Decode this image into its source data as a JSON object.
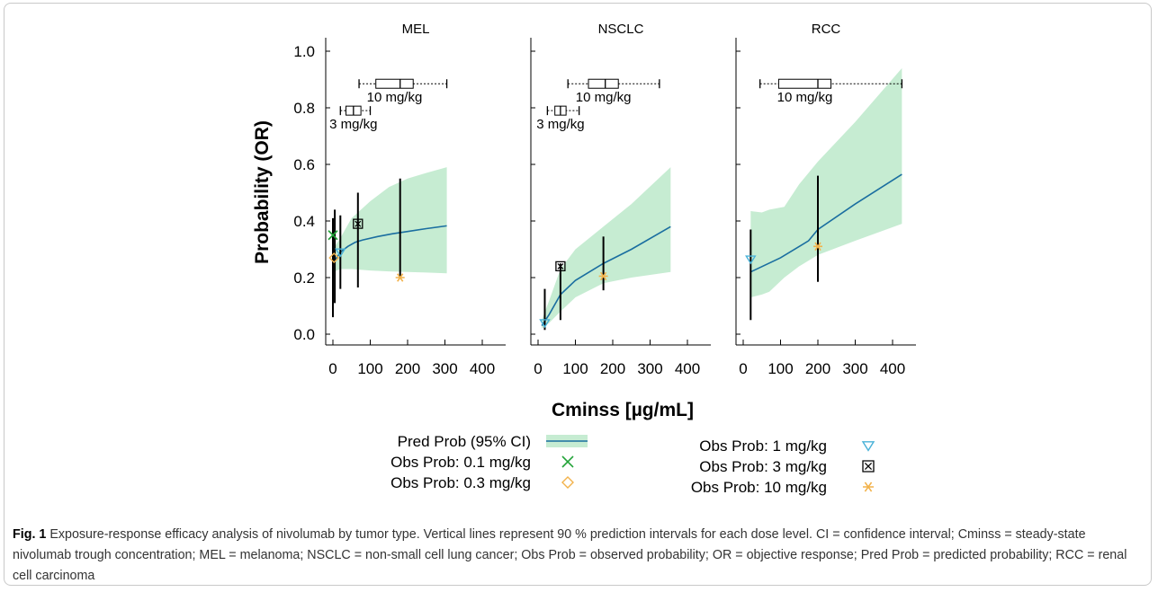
{
  "chart_data": {
    "type": "line",
    "ylabel": "Probability (OR)",
    "xlabel": "Cminss [µg/mL]",
    "ylim": [
      0,
      1.0
    ],
    "xlim": [
      0,
      450
    ],
    "y_ticks": [
      "0.0",
      "0.2",
      "0.4",
      "0.6",
      "0.8",
      "1.0"
    ],
    "x_ticks": [
      "0",
      "100",
      "200",
      "300",
      "400"
    ],
    "panels": [
      {
        "title": "MEL",
        "pred": {
          "x": [
            0,
            10,
            20,
            40,
            60,
            80,
            120,
            160,
            200,
            250,
            305
          ],
          "y": [
            0.25,
            0.27,
            0.29,
            0.31,
            0.325,
            0.333,
            0.345,
            0.355,
            0.363,
            0.373,
            0.383
          ]
        },
        "ci": {
          "x": [
            0,
            20,
            50,
            100,
            150,
            200,
            250,
            305
          ],
          "lower": [
            0.22,
            0.23,
            0.23,
            0.225,
            0.222,
            0.22,
            0.218,
            0.215
          ],
          "upper": [
            0.3,
            0.34,
            0.41,
            0.47,
            0.52,
            0.55,
            0.57,
            0.59
          ]
        },
        "intervals": [
          {
            "x": 0,
            "lower": 0.06,
            "upper": 0.41
          },
          {
            "x": 5,
            "lower": 0.11,
            "upper": 0.44
          },
          {
            "x": 20,
            "lower": 0.16,
            "upper": 0.42
          },
          {
            "x": 67,
            "lower": 0.165,
            "upper": 0.5
          },
          {
            "x": 180,
            "lower": 0.2,
            "upper": 0.55
          }
        ],
        "observed": [
          {
            "dose": "0.1 mg/kg",
            "x": 0,
            "y": 0.35
          },
          {
            "dose": "0.3 mg/kg",
            "x": 3,
            "y": 0.27
          },
          {
            "dose": "1 mg/kg",
            "x": 20,
            "y": 0.29
          },
          {
            "dose": "3 mg/kg",
            "x": 67,
            "y": 0.39
          },
          {
            "dose": "10 mg/kg",
            "x": 180,
            "y": 0.2
          }
        ],
        "boxplots": [
          {
            "label": "10 mg/kg",
            "y": 0.885,
            "min": 70,
            "q1": 115,
            "median": 180,
            "q3": 215,
            "max": 305
          },
          {
            "label": "3 mg/kg",
            "y": 0.79,
            "min": 20,
            "q1": 35,
            "median": 55,
            "q3": 75,
            "max": 100
          }
        ]
      },
      {
        "title": "NSCLC",
        "pred": {
          "x": [
            10,
            30,
            60,
            100,
            175,
            250,
            355
          ],
          "y": [
            0.03,
            0.07,
            0.14,
            0.19,
            0.25,
            0.3,
            0.38
          ]
        },
        "ci": {
          "x": [
            10,
            30,
            60,
            100,
            175,
            250,
            355
          ],
          "lower": [
            0.02,
            0.04,
            0.08,
            0.13,
            0.18,
            0.2,
            0.22
          ],
          "upper": [
            0.05,
            0.12,
            0.23,
            0.3,
            0.38,
            0.46,
            0.59
          ]
        },
        "intervals": [
          {
            "x": 18,
            "lower": 0.015,
            "upper": 0.16
          },
          {
            "x": 60,
            "lower": 0.05,
            "upper": 0.25
          },
          {
            "x": 175,
            "lower": 0.155,
            "upper": 0.345
          }
        ],
        "observed": [
          {
            "dose": "1 mg/kg",
            "x": 18,
            "y": 0.04
          },
          {
            "dose": "3 mg/kg",
            "x": 60,
            "y": 0.24
          },
          {
            "dose": "10 mg/kg",
            "x": 175,
            "y": 0.205
          }
        ],
        "boxplots": [
          {
            "label": "10 mg/kg",
            "y": 0.885,
            "min": 80,
            "q1": 135,
            "median": 180,
            "q3": 215,
            "max": 325
          },
          {
            "label": "3 mg/kg",
            "y": 0.79,
            "min": 25,
            "q1": 45,
            "median": 60,
            "q3": 75,
            "max": 110
          }
        ]
      },
      {
        "title": "RCC",
        "pred": {
          "x": [
            20,
            100,
            175,
            200,
            300,
            425
          ],
          "y": [
            0.22,
            0.27,
            0.33,
            0.37,
            0.46,
            0.565
          ]
        },
        "ci": {
          "x": [
            20,
            50,
            70,
            110,
            150,
            200,
            300,
            425
          ],
          "lower": [
            0.13,
            0.14,
            0.15,
            0.2,
            0.24,
            0.28,
            0.33,
            0.39
          ],
          "upper": [
            0.435,
            0.43,
            0.44,
            0.45,
            0.53,
            0.61,
            0.75,
            0.94
          ]
        },
        "intervals": [
          {
            "x": 20,
            "lower": 0.05,
            "upper": 0.37
          },
          {
            "x": 200,
            "lower": 0.185,
            "upper": 0.56
          }
        ],
        "observed": [
          {
            "dose": "1 mg/kg",
            "x": 20,
            "y": 0.265
          },
          {
            "dose": "10 mg/kg",
            "x": 200,
            "y": 0.31
          }
        ],
        "boxplots": [
          {
            "label": "10 mg/kg",
            "y": 0.885,
            "min": 45,
            "q1": 95,
            "median": 200,
            "q3": 235,
            "max": 425
          }
        ]
      }
    ],
    "legend": [
      {
        "label": "Pred Prob (95% CI)",
        "marker": "band"
      },
      {
        "label": "Obs Prob: 0.1 mg/kg",
        "marker": "x"
      },
      {
        "label": "Obs Prob: 0.3 mg/kg",
        "marker": "diamond"
      },
      {
        "label": "Obs Prob: 1 mg/kg",
        "marker": "triangle-down"
      },
      {
        "label": "Obs Prob: 3 mg/kg",
        "marker": "boxed-x"
      },
      {
        "label": "Obs Prob: 10 mg/kg",
        "marker": "asterisk"
      }
    ],
    "colors": {
      "pred_line": "#1a6ea0",
      "ci_band": "#c6ecd2",
      "dose_0_1": "#22a338",
      "dose_0_3": "#f2b24b",
      "dose_1": "#4ab2d8",
      "dose_3": "#000000",
      "dose_10": "#f2b24b"
    }
  },
  "caption": {
    "fig_label": "Fig. 1",
    "text": " Exposure-response efficacy analysis of nivolumab by tumor type. Vertical lines represent 90 % prediction intervals for each dose level. CI = confidence interval; Cminss = steady-state nivolumab trough concentration; MEL = melanoma; NSCLC = non-small cell lung cancer; Obs Prob = observed probability; OR = objective response; Pred Prob = predicted probability; RCC = renal cell carcinoma"
  }
}
